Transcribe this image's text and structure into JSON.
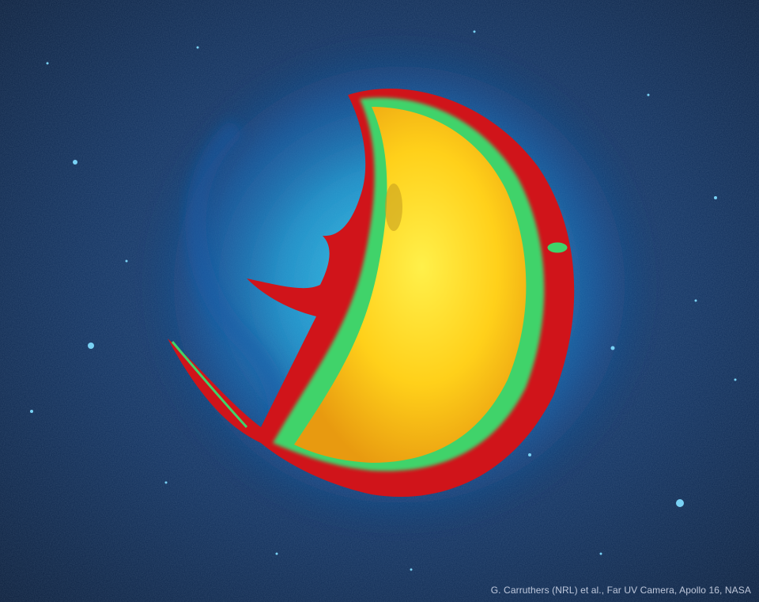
{
  "image": {
    "credit": "G. Carruthers (NRL) et al., Far UV Camera, Apollo 16, NASA"
  },
  "colors": {
    "space": "#0b1e3d",
    "halo_inner": "#35c6e8",
    "halo_outer": "#1f6fbf",
    "limb_red": "#d0141a",
    "limb_green": "#3fd36a",
    "core_yellow": "#ffd21a",
    "core_orange": "#f0a010"
  }
}
